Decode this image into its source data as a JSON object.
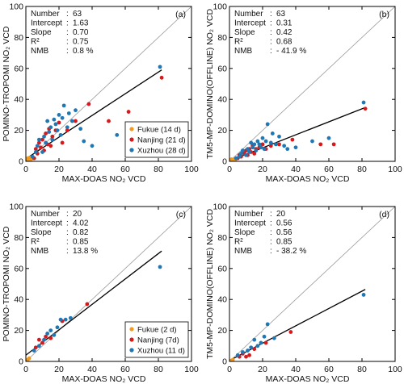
{
  "colors": {
    "Fukue": "#f29a1d",
    "Nanjing": "#d7191c",
    "Xuzhou": "#1f77b4",
    "fit": "#000000",
    "identity": "#9a9a9a",
    "frame": "#000000"
  },
  "chart_data": [
    {
      "type": "scatter",
      "panel_label": "(a)",
      "xlabel": "MAX-DOAS NO₂ VCD",
      "ylabel": "POMINO-TROPOMI NO₂ VCD",
      "xlim": [
        0,
        100
      ],
      "ylim": [
        0,
        100
      ],
      "xticks": [
        0,
        20,
        40,
        60,
        80,
        100
      ],
      "yticks": [
        0,
        20,
        40,
        60,
        80,
        100
      ],
      "stats": [
        {
          "label": "Number",
          "sep": ":",
          "value": "63"
        },
        {
          "label": "Intercept",
          "sep": ":",
          "value": "1.63"
        },
        {
          "label": "Slope",
          "sep": ":",
          "value": "0.70"
        },
        {
          "label": "R²",
          "sep": ":",
          "value": "0.75"
        },
        {
          "label": "NMB",
          "sep": ":",
          "value": "0.8 %"
        }
      ],
      "fit": {
        "intercept": 1.63,
        "slope": 0.7,
        "x_range": [
          0,
          82
        ]
      },
      "identity_line": true,
      "legend": {
        "position": "bottom-right",
        "entries": [
          "Fukue (14 d)",
          "Nanjing (21 d)",
          "Xuzhou (28 d)"
        ]
      },
      "series": [
        {
          "name": "Fukue (14 d)",
          "colorKey": "Fukue",
          "points": [
            [
              0.5,
              0.5
            ],
            [
              1,
              0.3
            ],
            [
              1.5,
              1.2
            ],
            [
              2,
              0.8
            ],
            [
              2.5,
              1.5
            ],
            [
              3,
              1
            ],
            [
              1.2,
              2
            ],
            [
              0.8,
              1.6
            ],
            [
              2.2,
              0.5
            ],
            [
              3.5,
              2
            ],
            [
              1.8,
              1.8
            ],
            [
              0.3,
              1
            ],
            [
              2.8,
              2.4
            ],
            [
              1,
              1
            ]
          ]
        },
        {
          "name": "Nanjing (21 d)",
          "colorKey": "Nanjing",
          "points": [
            [
              5,
              2
            ],
            [
              6,
              8
            ],
            [
              7,
              5
            ],
            [
              8,
              12
            ],
            [
              9,
              9
            ],
            [
              10,
              14
            ],
            [
              11,
              7
            ],
            [
              12,
              18
            ],
            [
              13,
              11
            ],
            [
              14,
              21
            ],
            [
              15,
              10
            ],
            [
              16,
              16
            ],
            [
              18,
              20
            ],
            [
              20,
              25
            ],
            [
              22,
              12
            ],
            [
              25,
              20
            ],
            [
              30,
              26
            ],
            [
              38,
              37
            ],
            [
              50,
              26
            ],
            [
              62,
              32
            ],
            [
              82,
              54
            ]
          ]
        },
        {
          "name": "Xuzhou (28 d)",
          "colorKey": "Xuzhou",
          "points": [
            [
              4,
              3
            ],
            [
              6,
              6
            ],
            [
              7,
              10
            ],
            [
              8,
              14
            ],
            [
              10,
              6
            ],
            [
              11,
              16
            ],
            [
              12,
              12
            ],
            [
              13,
              26
            ],
            [
              14,
              19
            ],
            [
              15,
              22
            ],
            [
              16,
              14
            ],
            [
              17,
              27
            ],
            [
              18,
              24
            ],
            [
              19,
              20
            ],
            [
              20,
              30
            ],
            [
              21,
              17
            ],
            [
              22,
              28
            ],
            [
              23,
              36
            ],
            [
              25,
              22
            ],
            [
              26,
              31
            ],
            [
              28,
              26
            ],
            [
              30,
              33
            ],
            [
              33,
              21
            ],
            [
              35,
              13
            ],
            [
              40,
              10
            ],
            [
              55,
              17
            ],
            [
              64,
              24
            ],
            [
              81,
              61
            ]
          ]
        }
      ]
    },
    {
      "type": "scatter",
      "panel_label": "(b)",
      "xlabel": "MAX-DOAS NO₂ VCD",
      "ylabel": "TM5-MP-DOMINO(OFFLINE) NO₂ VCD",
      "xlim": [
        0,
        100
      ],
      "ylim": [
        0,
        100
      ],
      "xticks": [
        0,
        20,
        40,
        60,
        80,
        100
      ],
      "yticks": [
        0,
        20,
        40,
        60,
        80,
        100
      ],
      "stats": [
        {
          "label": "Number",
          "sep": ":",
          "value": "63"
        },
        {
          "label": "Intercept",
          "sep": ":",
          "value": "0.31"
        },
        {
          "label": "Slope",
          "sep": ":",
          "value": "0.42"
        },
        {
          "label": "R²",
          "sep": ":",
          "value": "0.68"
        },
        {
          "label": "NMB",
          "sep": ":",
          "value": "- 41.9 %"
        }
      ],
      "fit": {
        "intercept": 0.31,
        "slope": 0.42,
        "x_range": [
          0,
          82
        ]
      },
      "identity_line": true,
      "series": [
        {
          "name": "Fukue (14 d)",
          "colorKey": "Fukue",
          "points": [
            [
              0.5,
              0.4
            ],
            [
              1,
              0.2
            ],
            [
              1.5,
              0.8
            ],
            [
              2,
              0.5
            ],
            [
              2.5,
              1
            ],
            [
              3,
              0.6
            ],
            [
              1.2,
              1.3
            ],
            [
              0.8,
              1
            ],
            [
              2.2,
              0.3
            ],
            [
              3.5,
              1.2
            ],
            [
              1.8,
              1.1
            ],
            [
              0.3,
              0.6
            ],
            [
              2.8,
              1.5
            ],
            [
              1,
              0.7
            ]
          ]
        },
        {
          "name": "Nanjing (21 d)",
          "colorKey": "Nanjing",
          "points": [
            [
              5,
              2
            ],
            [
              6,
              4
            ],
            [
              7,
              3
            ],
            [
              8,
              6
            ],
            [
              9,
              5
            ],
            [
              10,
              7
            ],
            [
              11,
              4
            ],
            [
              12,
              8
            ],
            [
              13,
              6
            ],
            [
              14,
              10
            ],
            [
              15,
              5
            ],
            [
              16,
              8
            ],
            [
              18,
              9
            ],
            [
              20,
              11
            ],
            [
              22,
              8
            ],
            [
              25,
              10
            ],
            [
              30,
              11
            ],
            [
              38,
              14
            ],
            [
              55,
              11
            ],
            [
              63,
              11
            ],
            [
              82,
              34
            ]
          ]
        },
        {
          "name": "Xuzhou (28 d)",
          "colorKey": "Xuzhou",
          "points": [
            [
              4,
              2
            ],
            [
              6,
              3
            ],
            [
              7,
              5
            ],
            [
              8,
              7
            ],
            [
              10,
              4
            ],
            [
              11,
              8
            ],
            [
              12,
              6
            ],
            [
              13,
              12
            ],
            [
              14,
              9
            ],
            [
              15,
              11
            ],
            [
              16,
              7
            ],
            [
              17,
              13
            ],
            [
              18,
              11
            ],
            [
              19,
              9
            ],
            [
              20,
              15
            ],
            [
              21,
              8
            ],
            [
              22,
              13
            ],
            [
              23,
              24
            ],
            [
              25,
              12
            ],
            [
              26,
              18
            ],
            [
              28,
              11
            ],
            [
              30,
              16
            ],
            [
              33,
              10
            ],
            [
              35,
              8
            ],
            [
              40,
              9
            ],
            [
              50,
              13
            ],
            [
              60,
              15
            ],
            [
              81,
              38
            ]
          ]
        }
      ]
    },
    {
      "type": "scatter",
      "panel_label": "(c)",
      "xlabel": "MAX-DOAS NO₂ VCD",
      "ylabel": "POMINO-TROPOMI NO₂ VCD",
      "xlim": [
        0,
        100
      ],
      "ylim": [
        0,
        100
      ],
      "xticks": [
        0,
        20,
        40,
        60,
        80,
        100
      ],
      "yticks": [
        0,
        20,
        40,
        60,
        80,
        100
      ],
      "stats": [
        {
          "label": "Number",
          "sep": ":",
          "value": "20"
        },
        {
          "label": "Intercept",
          "sep": ":",
          "value": "4.02"
        },
        {
          "label": "Slope",
          "sep": ":",
          "value": "0.82"
        },
        {
          "label": "R²",
          "sep": ":",
          "value": "0.85"
        },
        {
          "label": "NMB",
          "sep": ":",
          "value": "13.8 %"
        }
      ],
      "fit": {
        "intercept": 4.02,
        "slope": 0.82,
        "x_range": [
          0,
          82
        ]
      },
      "identity_line": true,
      "legend": {
        "position": "bottom-right",
        "entries": [
          "Fukue (2 d)",
          "Nanjing (7d)",
          "Xuzhou (11 d)"
        ]
      },
      "series": [
        {
          "name": "Fukue (2 d)",
          "colorKey": "Fukue",
          "points": [
            [
              1,
              1
            ],
            [
              2,
              2
            ]
          ]
        },
        {
          "name": "Nanjing (7d)",
          "colorKey": "Nanjing",
          "points": [
            [
              6,
              9
            ],
            [
              8,
              14
            ],
            [
              10,
              12
            ],
            [
              12,
              16
            ],
            [
              15,
              15
            ],
            [
              22,
              26
            ],
            [
              37,
              37
            ]
          ]
        },
        {
          "name": "Xuzhou (11 d)",
          "colorKey": "Xuzhou",
          "points": [
            [
              5,
              7
            ],
            [
              8,
              10
            ],
            [
              11,
              14
            ],
            [
              13,
              18
            ],
            [
              15,
              20
            ],
            [
              17,
              17
            ],
            [
              19,
              22
            ],
            [
              21,
              27
            ],
            [
              24,
              27
            ],
            [
              27,
              28
            ],
            [
              81,
              61
            ]
          ]
        }
      ]
    },
    {
      "type": "scatter",
      "panel_label": "(d)",
      "xlabel": "MAX-DOAS NO₂ VCD",
      "ylabel": "TM5-MP-DOMINO(OFFLINE) NO₂ VCD",
      "xlim": [
        0,
        100
      ],
      "ylim": [
        0,
        100
      ],
      "xticks": [
        0,
        20,
        40,
        60,
        80,
        100
      ],
      "yticks": [
        0,
        20,
        40,
        60,
        80,
        100
      ],
      "stats": [
        {
          "label": "Number",
          "sep": ":",
          "value": "20"
        },
        {
          "label": "Intercept",
          "sep": ":",
          "value": "0.56"
        },
        {
          "label": "Slope",
          "sep": ":",
          "value": "0.56"
        },
        {
          "label": "R²",
          "sep": ":",
          "value": "0.85"
        },
        {
          "label": "NMB",
          "sep": ":",
          "value": "- 38.2 %"
        }
      ],
      "fit": {
        "intercept": 0.56,
        "slope": 0.56,
        "x_range": [
          0,
          82
        ]
      },
      "identity_line": true,
      "series": [
        {
          "name": "Fukue (2 d)",
          "colorKey": "Fukue",
          "points": [
            [
              1,
              0.5
            ],
            [
              2,
              1
            ]
          ]
        },
        {
          "name": "Nanjing (7d)",
          "colorKey": "Nanjing",
          "points": [
            [
              6,
              3
            ],
            [
              8,
              5
            ],
            [
              10,
              3
            ],
            [
              12,
              4
            ],
            [
              15,
              8
            ],
            [
              22,
              12
            ],
            [
              37,
              19
            ]
          ]
        },
        {
          "name": "Xuzhou (11 d)",
          "colorKey": "Xuzhou",
          "points": [
            [
              5,
              4
            ],
            [
              8,
              6
            ],
            [
              11,
              7
            ],
            [
              13,
              9
            ],
            [
              15,
              14
            ],
            [
              17,
              10
            ],
            [
              19,
              12
            ],
            [
              21,
              16
            ],
            [
              23,
              24
            ],
            [
              27,
              15
            ],
            [
              81,
              43
            ]
          ]
        }
      ]
    }
  ]
}
